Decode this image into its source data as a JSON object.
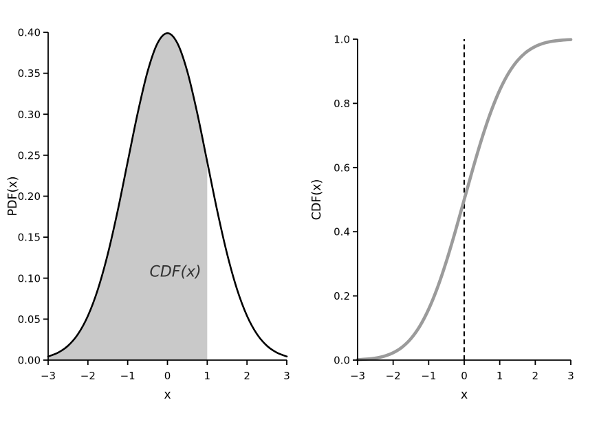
{
  "figure": {
    "background": "#ffffff"
  },
  "chart_data": [
    {
      "id": "pdf",
      "type": "area",
      "title": "",
      "xlabel": "x",
      "ylabel": "PDF(x)",
      "xlim": [
        -3,
        3
      ],
      "ylim": [
        0,
        0.4
      ],
      "grid": false,
      "legend": null,
      "xticks": {
        "values": [
          -3,
          -2,
          -1,
          0,
          1,
          2,
          3
        ],
        "labels": [
          "−3",
          "−2",
          "−1",
          "0",
          "1",
          "2",
          "3"
        ]
      },
      "yticks": {
        "values": [
          0.0,
          0.05,
          0.1,
          0.15,
          0.2,
          0.25,
          0.3,
          0.35,
          0.4
        ],
        "labels": [
          "0.00",
          "0.05",
          "0.10",
          "0.15",
          "0.20",
          "0.25",
          "0.30",
          "0.35",
          "0.40"
        ]
      },
      "x": [
        -3,
        -2.75,
        -2.5,
        -2.25,
        -2,
        -1.75,
        -1.5,
        -1.25,
        -1,
        -0.75,
        -0.5,
        -0.25,
        0,
        0.25,
        0.5,
        0.75,
        1,
        1.25,
        1.5,
        1.75,
        2,
        2.25,
        2.5,
        2.75,
        3
      ],
      "y": [
        0.0044,
        0.0091,
        0.0175,
        0.0317,
        0.054,
        0.0863,
        0.1295,
        0.1826,
        0.242,
        0.3011,
        0.3521,
        0.3867,
        0.3989,
        0.3867,
        0.3521,
        0.3011,
        0.242,
        0.1826,
        0.1295,
        0.0863,
        0.054,
        0.0317,
        0.0175,
        0.0091,
        0.0044
      ],
      "line": {
        "color": "#000000",
        "width": 2.6
      },
      "fill": {
        "x_from": -3,
        "x_to": 1,
        "color": "#c9c9c9"
      },
      "annotation": {
        "text": "CDF(x)",
        "x": 0.2,
        "y": 0.102,
        "font_style": "italic",
        "color": "#333333"
      }
    },
    {
      "id": "cdf",
      "type": "line",
      "title": "",
      "xlabel": "x",
      "ylabel": "CDF(x)",
      "xlim": [
        -3,
        3
      ],
      "ylim": [
        0,
        1.0
      ],
      "grid": false,
      "legend": null,
      "xticks": {
        "values": [
          -3,
          -2,
          -1,
          0,
          1,
          2,
          3
        ],
        "labels": [
          "−3",
          "−2",
          "−1",
          "0",
          "1",
          "2",
          "3"
        ]
      },
      "yticks": {
        "values": [
          0.0,
          0.2,
          0.4,
          0.6,
          0.8,
          1.0
        ],
        "labels": [
          "0.0",
          "0.2",
          "0.4",
          "0.6",
          "0.8",
          "1.0"
        ]
      },
      "x": [
        -3,
        -2.75,
        -2.5,
        -2.25,
        -2,
        -1.75,
        -1.5,
        -1.25,
        -1,
        -0.75,
        -0.5,
        -0.25,
        0,
        0.25,
        0.5,
        0.75,
        1,
        1.25,
        1.5,
        1.75,
        2,
        2.25,
        2.5,
        2.75,
        3
      ],
      "y": [
        0.0013,
        0.003,
        0.0062,
        0.0122,
        0.0228,
        0.0401,
        0.0668,
        0.1056,
        0.1587,
        0.2266,
        0.3085,
        0.4013,
        0.5,
        0.5987,
        0.6915,
        0.7734,
        0.8413,
        0.8944,
        0.9332,
        0.9599,
        0.9772,
        0.9878,
        0.9938,
        0.997,
        0.9987
      ],
      "line": {
        "color": "#9b9b9b",
        "width": 4.6
      },
      "vline": {
        "x": 0,
        "color": "#000000",
        "width": 2.2,
        "dash": "7 4.6"
      }
    }
  ]
}
